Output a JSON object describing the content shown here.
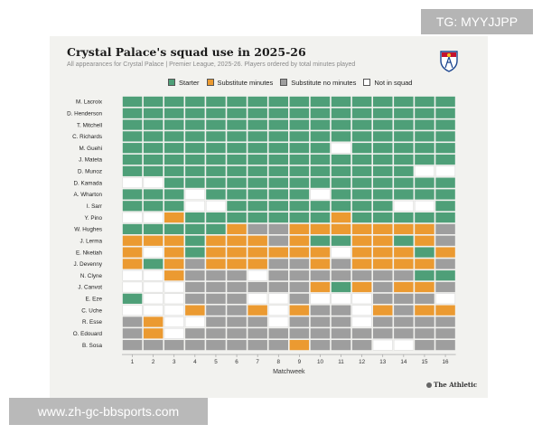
{
  "watermarks": {
    "top_right": "TG: MYYJJPP",
    "bottom_left": "www.zh-gc-bbsports.com"
  },
  "brand": "The Athletic",
  "chart_data": {
    "type": "heatmap",
    "title": "Crystal Palace's squad use in 2025-26",
    "subtitle": "All appearances for Crystal Palace | Premier League, 2025-26. Players ordered by total minutes played",
    "xlabel": "Matchweek",
    "x": [
      "1",
      "2",
      "3",
      "4",
      "5",
      "6",
      "7",
      "8",
      "9",
      "10",
      "11",
      "12",
      "13",
      "14",
      "15",
      "16"
    ],
    "legend": [
      {
        "code": "S",
        "label": "Starter",
        "color": "#4e9f78"
      },
      {
        "code": "M",
        "label": "Substitute minutes",
        "color": "#eb9a31"
      },
      {
        "code": "U",
        "label": "Substitute no minutes",
        "color": "#9e9e9e"
      },
      {
        "code": "N",
        "label": "Not in squad",
        "color": "#ffffff"
      }
    ],
    "players": [
      {
        "name": "M. Lacroix",
        "weeks": "SSSSSSSSSSSSSSSS"
      },
      {
        "name": "D. Henderson",
        "weeks": "SSSSSSSSSSSSSSSS"
      },
      {
        "name": "T. Mitchell",
        "weeks": "SSSSSSSSSSSSSSSS"
      },
      {
        "name": "C. Richards",
        "weeks": "SSSSSSSSSSSSSSSS"
      },
      {
        "name": "M. Guehi",
        "weeks": "SSSSSSSSSSNSSSSS"
      },
      {
        "name": "J. Mateta",
        "weeks": "SSSSSSSSSSSSSSSS"
      },
      {
        "name": "D. Munoz",
        "weeks": "SSSSSSSSSSSSSSNN"
      },
      {
        "name": "D. Kamada",
        "weeks": "NNSSSSSSSSSSSSSS"
      },
      {
        "name": "A. Wharton",
        "weeks": "SSSNSSSSSNSSSSSS"
      },
      {
        "name": "I. Sarr",
        "weeks": "SSSNNSSSSSSSSNNS"
      },
      {
        "name": "Y. Pino",
        "weeks": "NNMSSSSSSSMSSSSS"
      },
      {
        "name": "W. Hughes",
        "weeks": "SSSSSMUUMMMMMMMU"
      },
      {
        "name": "J. Lerma",
        "weeks": "MMMSMMMUMSSMMSMU"
      },
      {
        "name": "E. Nketiah",
        "weeks": "MNMSMMMMMMNMMMSM"
      },
      {
        "name": "J. Devenny",
        "weeks": "MSMUMMMUUMUMMMMU"
      },
      {
        "name": "N. Clyne",
        "weeks": "NNMUUUNUUUUUUUSS"
      },
      {
        "name": "J. Canvot",
        "weeks": "NNNUUUUUUMSMUMMU"
      },
      {
        "name": "E. Eze",
        "weeks": "SNNUUUNNUNNNUUUN"
      },
      {
        "name": "C. Uche",
        "weeks": "NNNMUUMNMUUNMUMM"
      },
      {
        "name": "R. Esse",
        "weeks": "UMNNUUUNUUUNUUUU"
      },
      {
        "name": "O. Edouard",
        "weeks": "UMNUUUUUUUUUUUUU"
      },
      {
        "name": "B. Sosa",
        "weeks": "UUUUUUUUMUUUNNUU"
      }
    ]
  }
}
